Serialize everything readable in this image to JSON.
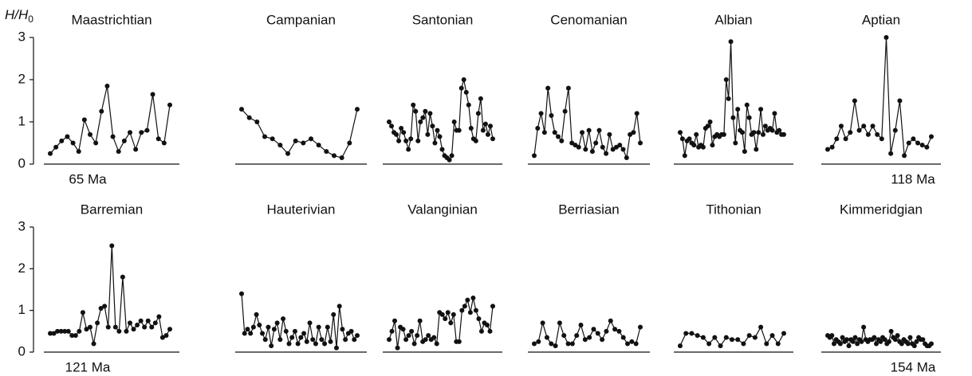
{
  "chart_data": [
    {
      "type": "line",
      "title": "Maastrichtian",
      "ylabel": "H/H",
      "ylabel_sub": "0",
      "annotation": "65 Ma",
      "ylim": [
        0,
        3
      ],
      "yticks": [
        0,
        1,
        2,
        3
      ],
      "values": [
        0.25,
        0.4,
        0.55,
        0.65,
        0.5,
        0.3,
        1.05,
        0.7,
        0.5,
        1.25,
        1.85,
        0.65,
        0.3,
        0.55,
        0.75,
        0.35,
        0.75,
        0.8,
        1.65,
        0.6,
        0.5,
        1.4
      ]
    },
    {
      "type": "line",
      "title": "Campanian",
      "ylim": [
        0,
        3
      ],
      "values": [
        1.3,
        1.1,
        1.0,
        0.65,
        0.6,
        0.45,
        0.25,
        0.55,
        0.5,
        0.6,
        0.45,
        0.3,
        0.2,
        0.15,
        0.5,
        1.3
      ]
    },
    {
      "type": "line",
      "title": "Santonian",
      "ylim": [
        0,
        3
      ],
      "values": [
        1.0,
        0.9,
        0.75,
        0.7,
        0.55,
        0.85,
        0.75,
        0.55,
        0.35,
        0.6,
        1.4,
        1.25,
        0.55,
        1.0,
        1.1,
        1.25,
        0.7,
        1.2,
        0.9,
        0.5,
        0.8,
        0.65,
        0.35,
        0.2,
        0.15,
        0.1,
        0.2,
        1.0,
        0.8,
        0.8,
        1.8,
        2.0,
        1.7,
        1.4,
        0.85,
        0.6,
        0.55,
        1.2,
        1.55,
        0.8,
        0.95,
        0.7,
        0.9,
        0.6
      ]
    },
    {
      "type": "line",
      "title": "Cenomanian",
      "ylim": [
        0,
        3
      ],
      "values": [
        0.2,
        0.85,
        1.2,
        0.75,
        1.8,
        1.15,
        0.75,
        0.65,
        0.55,
        1.25,
        1.8,
        0.5,
        0.45,
        0.4,
        0.75,
        0.35,
        0.8,
        0.3,
        0.5,
        0.8,
        0.4,
        0.25,
        0.7,
        0.35,
        0.4,
        0.45,
        0.35,
        0.15,
        0.7,
        0.75,
        1.2,
        0.5
      ]
    },
    {
      "type": "line",
      "title": "Albian",
      "ylim": [
        0,
        3
      ],
      "values": [
        0.75,
        0.6,
        0.2,
        0.55,
        0.6,
        0.5,
        0.45,
        0.7,
        0.4,
        0.45,
        0.4,
        0.85,
        0.9,
        1.0,
        0.45,
        0.65,
        0.7,
        0.65,
        0.7,
        0.7,
        2.0,
        1.55,
        2.9,
        1.1,
        0.5,
        1.3,
        0.8,
        0.75,
        0.3,
        1.4,
        1.1,
        0.7,
        0.75,
        0.35,
        0.75,
        1.3,
        0.7,
        0.9,
        0.8,
        0.85,
        0.8,
        1.2,
        0.75,
        0.8,
        0.7,
        0.7
      ]
    },
    {
      "type": "line",
      "title": "Aptian",
      "annotation": "118 Ma",
      "ylim": [
        0,
        3
      ],
      "values": [
        0.35,
        0.4,
        0.6,
        0.9,
        0.6,
        0.75,
        1.5,
        0.8,
        0.9,
        0.7,
        0.9,
        0.7,
        0.6,
        3.0,
        0.25,
        0.8,
        1.5,
        0.2,
        0.5,
        0.6,
        0.5,
        0.45,
        0.4,
        0.65
      ]
    },
    {
      "type": "line",
      "title": "Barremian",
      "annotation": "121 Ma",
      "ylim": [
        0,
        3
      ],
      "yticks": [
        0,
        1,
        2,
        3
      ],
      "values": [
        0.45,
        0.45,
        0.5,
        0.5,
        0.5,
        0.5,
        0.4,
        0.4,
        0.5,
        0.95,
        0.55,
        0.6,
        0.2,
        0.7,
        1.05,
        1.1,
        0.6,
        2.55,
        0.6,
        0.5,
        1.8,
        0.5,
        0.7,
        0.55,
        0.65,
        0.75,
        0.6,
        0.75,
        0.6,
        0.7,
        0.85,
        0.35,
        0.4,
        0.55
      ]
    },
    {
      "type": "line",
      "title": "Hauterivian",
      "ylim": [
        0,
        3
      ],
      "values": [
        1.4,
        0.45,
        0.55,
        0.45,
        0.6,
        0.9,
        0.65,
        0.45,
        0.3,
        0.6,
        0.15,
        0.55,
        0.7,
        0.3,
        0.8,
        0.5,
        0.2,
        0.35,
        0.5,
        0.2,
        0.35,
        0.45,
        0.25,
        0.7,
        0.3,
        0.2,
        0.6,
        0.3,
        0.2,
        0.6,
        0.25,
        0.9,
        0.1,
        1.1,
        0.55,
        0.3,
        0.45,
        0.5,
        0.3,
        0.4
      ]
    },
    {
      "type": "line",
      "title": "Valanginian",
      "ylim": [
        0,
        3
      ],
      "values": [
        0.3,
        0.5,
        0.75,
        0.1,
        0.6,
        0.55,
        0.3,
        0.4,
        0.5,
        0.2,
        0.4,
        0.75,
        0.25,
        0.3,
        0.4,
        0.3,
        0.35,
        0.2,
        0.95,
        0.9,
        0.8,
        0.95,
        0.7,
        0.9,
        0.25,
        0.25,
        1.0,
        1.1,
        1.25,
        0.95,
        1.3,
        1.0,
        0.8,
        0.5,
        0.7,
        0.65,
        0.5,
        1.1
      ]
    },
    {
      "type": "line",
      "title": "Berriasian",
      "ylim": [
        0,
        3
      ],
      "values": [
        0.2,
        0.25,
        0.7,
        0.35,
        0.2,
        0.15,
        0.7,
        0.4,
        0.2,
        0.2,
        0.4,
        0.65,
        0.3,
        0.35,
        0.55,
        0.45,
        0.3,
        0.5,
        0.75,
        0.55,
        0.5,
        0.35,
        0.2,
        0.25,
        0.2,
        0.6
      ]
    },
    {
      "type": "line",
      "title": "Tithonian",
      "ylim": [
        0,
        3
      ],
      "values": [
        0.15,
        0.45,
        0.45,
        0.4,
        0.35,
        0.2,
        0.35,
        0.15,
        0.35,
        0.3,
        0.3,
        0.2,
        0.4,
        0.35,
        0.6,
        0.2,
        0.4,
        0.2,
        0.45
      ]
    },
    {
      "type": "line",
      "title": "Kimmeridgian",
      "annotation": "154 Ma",
      "ylim": [
        0,
        3
      ],
      "values": [
        0.4,
        0.35,
        0.4,
        0.2,
        0.3,
        0.25,
        0.2,
        0.35,
        0.25,
        0.3,
        0.15,
        0.3,
        0.25,
        0.35,
        0.2,
        0.3,
        0.25,
        0.6,
        0.3,
        0.25,
        0.3,
        0.3,
        0.35,
        0.2,
        0.3,
        0.25,
        0.35,
        0.3,
        0.2,
        0.25,
        0.5,
        0.35,
        0.3,
        0.4,
        0.25,
        0.2,
        0.3,
        0.25,
        0.2,
        0.35,
        0.2,
        0.15,
        0.25,
        0.35,
        0.3,
        0.3,
        0.2,
        0.15,
        0.15,
        0.2
      ]
    }
  ]
}
